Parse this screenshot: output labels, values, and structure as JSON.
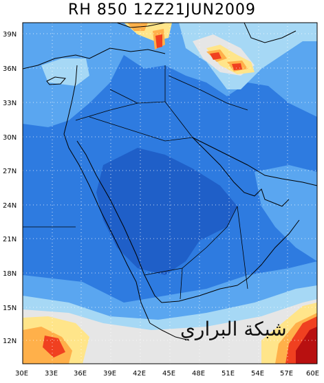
{
  "title": "RH 850 12Z21JUN2009",
  "watermark_text": "شبكة البراري",
  "lat_labels": [
    "39N",
    "36N",
    "33N",
    "30N",
    "27N",
    "24N",
    "21N",
    "18N",
    "15N",
    "12N"
  ],
  "lon_labels": [
    "30E",
    "33E",
    "36E",
    "39E",
    "42E",
    "45E",
    "48E",
    "51E",
    "54E",
    "57E",
    "60E"
  ],
  "lon_range": [
    30,
    60
  ],
  "lat_range": [
    10,
    40.5
  ],
  "colors": {
    "very_dry": "#1f5fc8",
    "dry": "#2e7be0",
    "mid": "#5aa6f0",
    "moist_light": "#a6d8f5",
    "neutral": "#e6e6e6",
    "moist_yellow": "#ffe58a",
    "moist_orange": "#ffb04a",
    "moist_red": "#f04020",
    "saturated": "#b81010",
    "coast": "#000000",
    "grid": "#ffffff"
  }
}
